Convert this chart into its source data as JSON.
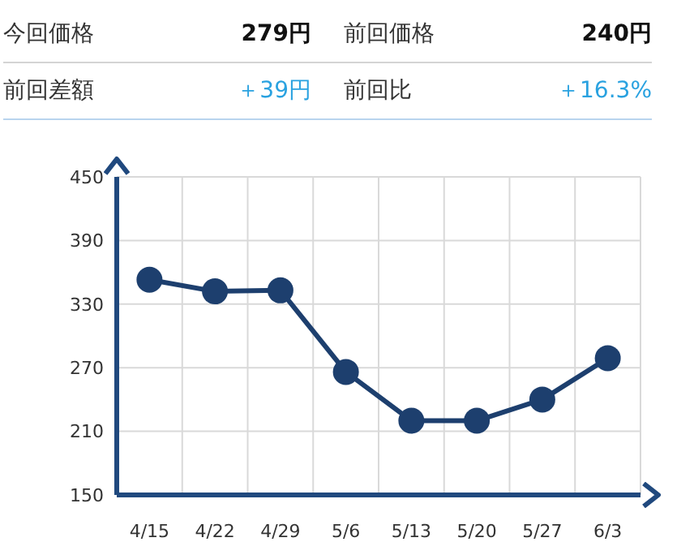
{
  "chart_data": [
    {
      "type": "other",
      "annotations": [
        "今回価格",
        "279円",
        "前回価格",
        "240円",
        "前回差額",
        "＋39円",
        "前回比",
        "＋16.3%"
      ]
    },
    {
      "type": "line",
      "categories": [
        "4/15",
        "4/22",
        "4/29",
        "5/6",
        "5/13",
        "5/20",
        "5/27",
        "6/3"
      ],
      "series": [
        {
          "color": "#1d3f6e",
          "values": [
            353,
            342,
            343,
            266,
            220,
            220,
            240,
            279
          ]
        }
      ],
      "ylim": [
        150,
        450
      ],
      "yticks": [
        150,
        210,
        270,
        330,
        390,
        450
      ],
      "grid": true,
      "marker": "circle",
      "line_style": "solid"
    }
  ]
}
